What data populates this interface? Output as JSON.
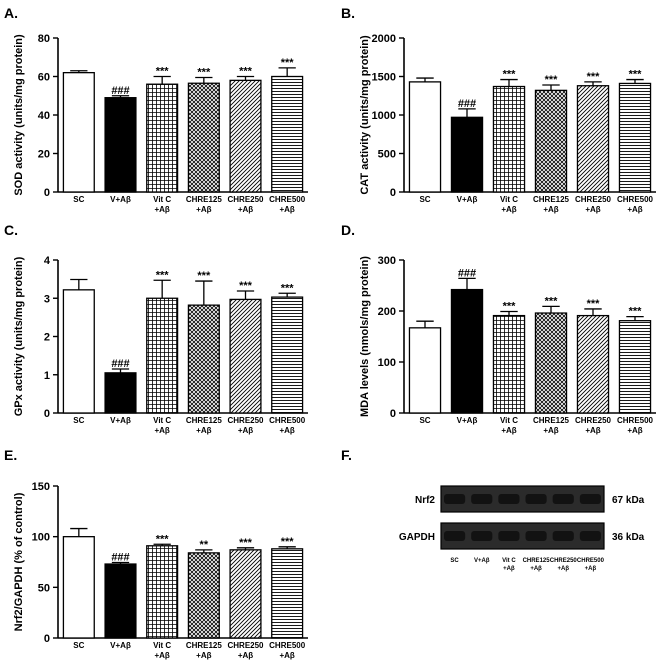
{
  "chart_data": [
    {
      "panel": "A.",
      "type": "bar",
      "ylabel": "SOD activity (units/mg protein)",
      "ylim": [
        0,
        80
      ],
      "yticks": [
        0,
        20,
        40,
        60,
        80
      ],
      "categories": [
        [
          "SC"
        ],
        [
          "V+Aβ"
        ],
        [
          "Vit C",
          "+Aβ"
        ],
        [
          "CHRE125",
          "+Aβ"
        ],
        [
          "CHRE250",
          "+Aβ"
        ],
        [
          "CHRE500",
          "+Aβ"
        ]
      ],
      "values": [
        62,
        49,
        56,
        56.5,
        58,
        60
      ],
      "errors": [
        1,
        1,
        4,
        3,
        2,
        4.5
      ],
      "annotations": [
        "",
        "###",
        "***",
        "***",
        "***",
        "***"
      ],
      "fills": [
        "white",
        "black",
        "grid",
        "cross",
        "diag",
        "horiz"
      ]
    },
    {
      "panel": "B.",
      "type": "bar",
      "ylabel": "CAT activity (units/mg protein)",
      "ylim": [
        0,
        2000
      ],
      "yticks": [
        0,
        500,
        1000,
        1500,
        2000
      ],
      "categories": [
        [
          "SC"
        ],
        [
          "V+Aβ"
        ],
        [
          "Vit C",
          "+Aβ"
        ],
        [
          "CHRE125",
          "+Aβ"
        ],
        [
          "CHRE250",
          "+Aβ"
        ],
        [
          "CHRE500",
          "+Aβ"
        ]
      ],
      "values": [
        1430,
        970,
        1370,
        1320,
        1380,
        1410
      ],
      "errors": [
        50,
        110,
        90,
        70,
        50,
        50
      ],
      "annotations": [
        "",
        "###",
        "***",
        "***",
        "***",
        "***"
      ],
      "fills": [
        "white",
        "black",
        "grid",
        "cross",
        "diag",
        "horiz"
      ]
    },
    {
      "panel": "C.",
      "type": "bar",
      "ylabel": "GPx activity (units/mg protein)",
      "ylim": [
        0,
        4
      ],
      "yticks": [
        0,
        1,
        2,
        3,
        4
      ],
      "categories": [
        [
          "SC"
        ],
        [
          "V+Aβ"
        ],
        [
          "Vit C",
          "+Aβ"
        ],
        [
          "CHRE125",
          "+Aβ"
        ],
        [
          "CHRE250",
          "+Aβ"
        ],
        [
          "CHRE500",
          "+Aβ"
        ]
      ],
      "values": [
        3.22,
        1.05,
        3.0,
        2.82,
        2.97,
        3.03
      ],
      "errors": [
        0.27,
        0.1,
        0.47,
        0.63,
        0.22,
        0.1
      ],
      "annotations": [
        "",
        "###",
        "***",
        "***",
        "***",
        "***"
      ],
      "fills": [
        "white",
        "black",
        "grid",
        "cross",
        "diag",
        "horiz"
      ]
    },
    {
      "panel": "D.",
      "type": "bar",
      "ylabel": "MDA levels (nmols/mg protein)",
      "ylim": [
        0,
        300
      ],
      "yticks": [
        0,
        100,
        200,
        300
      ],
      "categories": [
        [
          "SC"
        ],
        [
          "V+Aβ"
        ],
        [
          "Vit C",
          "+Aβ"
        ],
        [
          "CHRE125",
          "+Aβ"
        ],
        [
          "CHRE250",
          "+Aβ"
        ],
        [
          "CHRE500",
          "+Aβ"
        ]
      ],
      "values": [
        167,
        242,
        191,
        196,
        191,
        181
      ],
      "errors": [
        13,
        22,
        8,
        13,
        13,
        8
      ],
      "annotations": [
        "",
        "###",
        "***",
        "***",
        "***",
        "***"
      ],
      "fills": [
        "white",
        "black",
        "grid",
        "cross",
        "diag",
        "horiz"
      ]
    },
    {
      "panel": "E.",
      "type": "bar",
      "ylabel": "Nrf2/GAPDH (% of control)",
      "ylim": [
        0,
        150
      ],
      "yticks": [
        0,
        50,
        100,
        150
      ],
      "categories": [
        [
          "SC"
        ],
        [
          "V+Aβ"
        ],
        [
          "Vit C",
          "+Aβ"
        ],
        [
          "CHRE125",
          "+Aβ"
        ],
        [
          "CHRE250",
          "+Aβ"
        ],
        [
          "CHRE500",
          "+Aβ"
        ]
      ],
      "values": [
        100,
        73,
        91,
        84,
        87,
        88
      ],
      "errors": [
        8,
        1.5,
        1.5,
        3,
        2,
        2
      ],
      "annotations": [
        "",
        "###",
        "***",
        "**",
        "***",
        "***"
      ],
      "fills": [
        "white",
        "black",
        "grid",
        "cross",
        "diag",
        "horiz"
      ]
    }
  ],
  "blot": {
    "panel": "F.",
    "rows": [
      {
        "protein": "Nrf2",
        "size": "67 kDa"
      },
      {
        "protein": "GAPDH",
        "size": "36 kDa"
      }
    ],
    "categories": [
      [
        "SC"
      ],
      [
        "V+Aβ"
      ],
      [
        "Vit C",
        "+Aβ"
      ],
      [
        "CHRE125",
        "+Aβ"
      ],
      [
        "CHRE250",
        "+Aβ"
      ],
      [
        "CHRE500",
        "+Aβ"
      ]
    ]
  }
}
